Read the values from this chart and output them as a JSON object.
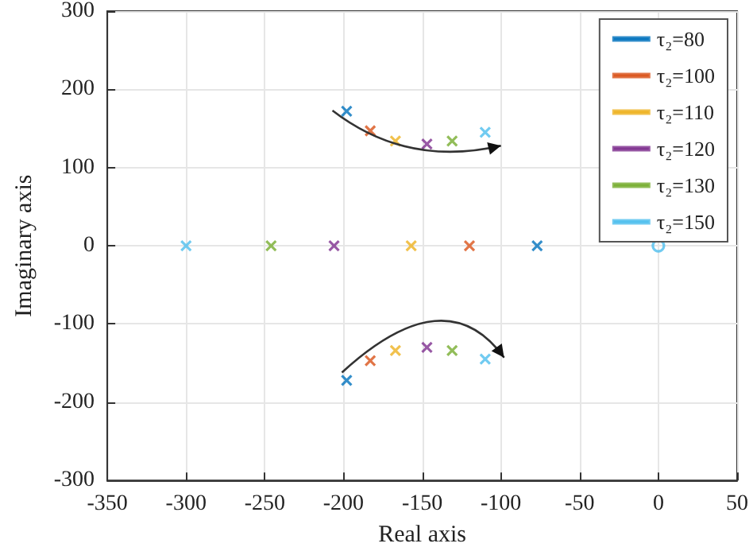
{
  "chart_data": {
    "type": "scatter",
    "xlabel": "Real axis",
    "ylabel": "Imaginary axis",
    "xlim": [
      -350,
      50
    ],
    "xticks": [
      -350,
      -300,
      -250,
      -200,
      -150,
      -100,
      -50,
      0,
      50
    ],
    "ylim": [
      -300,
      300
    ],
    "yticks": [
      -300,
      -200,
      -100,
      0,
      100,
      200,
      300
    ],
    "grid": true,
    "legend": "top right",
    "marker": "cross",
    "series": [
      {
        "name": "τ₂=80",
        "color": "#0072bd",
        "x": [
          -198,
          -77,
          -198
        ],
        "values": [
          172,
          0,
          -172
        ]
      },
      {
        "name": "τ₂=100",
        "color": "#d95319",
        "x": [
          -183,
          -120,
          -183
        ],
        "values": [
          147,
          0,
          -147
        ]
      },
      {
        "name": "τ₂=110",
        "color": "#edb120",
        "x": [
          -167,
          -157,
          -167
        ],
        "values": [
          134,
          0,
          -134
        ]
      },
      {
        "name": "τ₂=120",
        "color": "#7e2f8e",
        "x": [
          -147,
          -206,
          -147
        ],
        "values": [
          130,
          0,
          -130
        ]
      },
      {
        "name": "τ₂=130",
        "color": "#77ac30",
        "x": [
          -131,
          -246,
          -131
        ],
        "values": [
          134,
          0,
          -134
        ]
      },
      {
        "name": "τ₂=150",
        "color": "#4dbeee",
        "x": [
          -110,
          -300,
          -110
        ],
        "values": [
          145,
          0,
          -145
        ]
      },
      {
        "color": "#4dbeee",
        "marker": "circle",
        "x": [
          0
        ],
        "values": [
          0
        ]
      }
    ]
  }
}
